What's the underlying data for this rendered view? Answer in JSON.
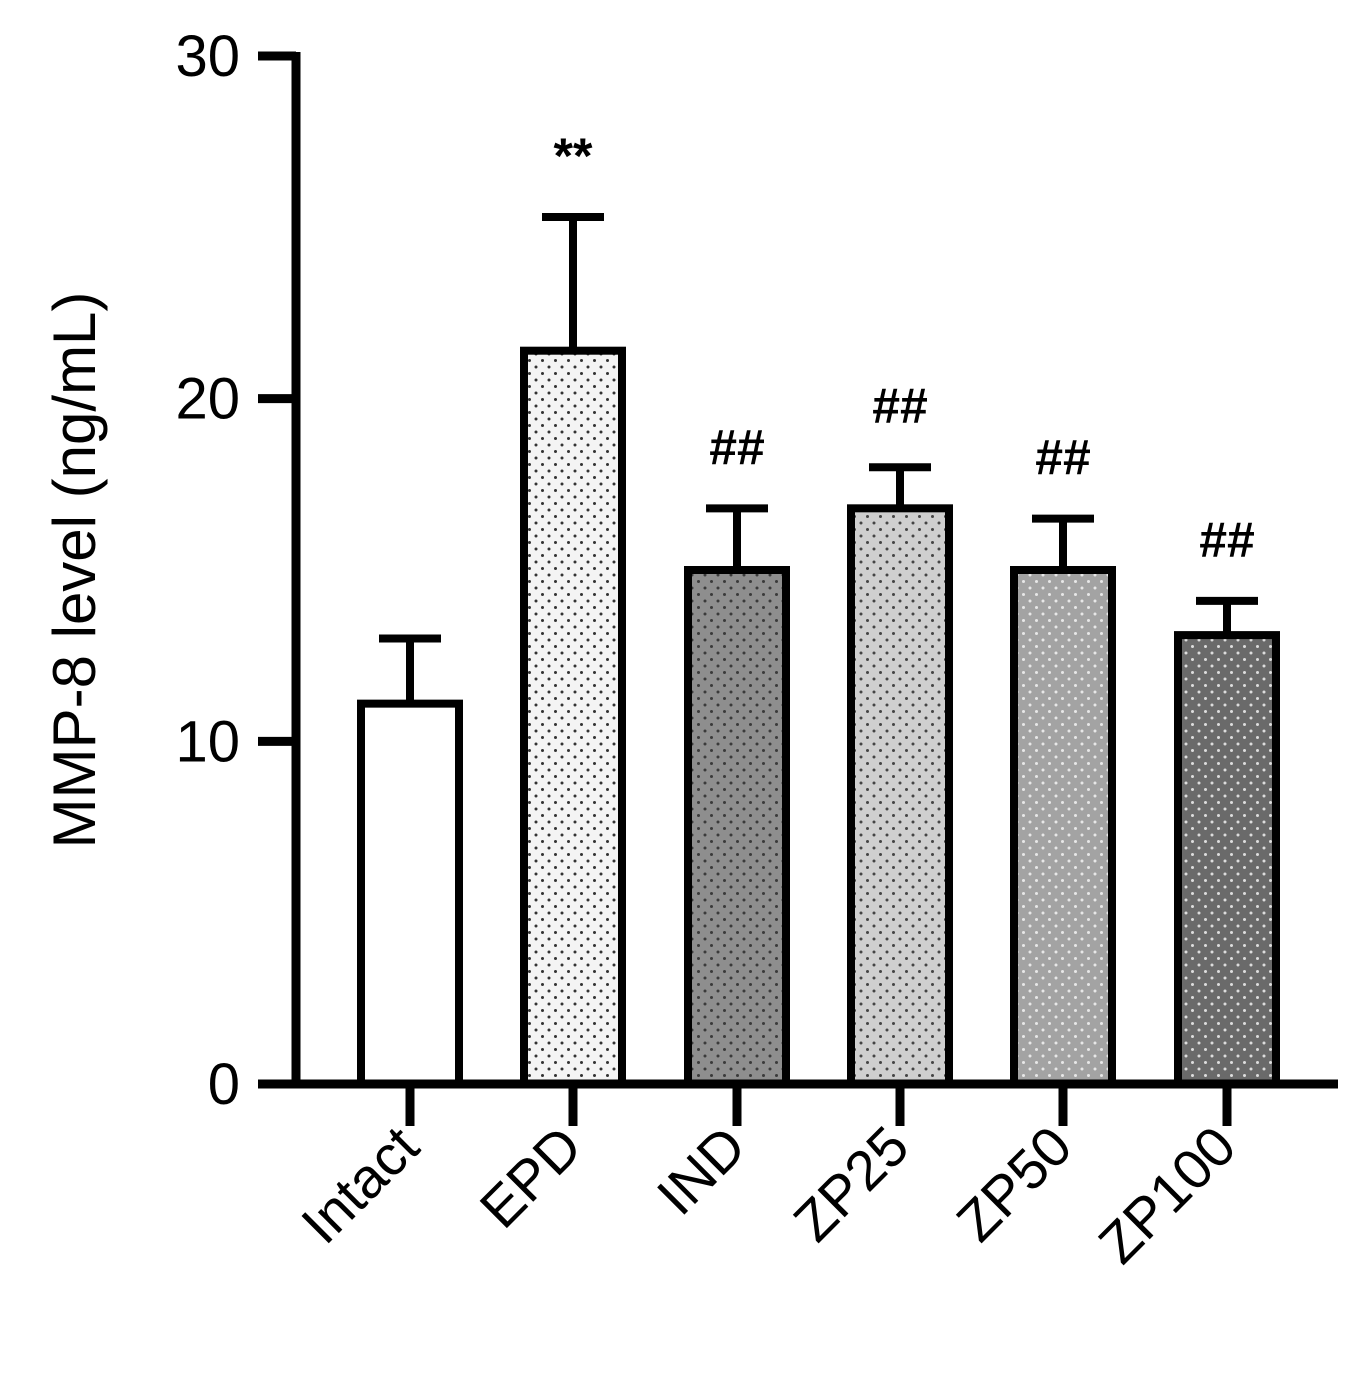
{
  "chart_data": {
    "type": "bar",
    "title": "",
    "xlabel": "",
    "ylabel": "MMP-8 level (ng/mL)",
    "ylim": [
      0,
      30
    ],
    "yticks": [
      0,
      10,
      20,
      30
    ],
    "grid": false,
    "categories": [
      "Intact",
      "EPD",
      "IND",
      "ZP25",
      "ZP50",
      "ZP100"
    ],
    "values": [
      11.1,
      21.4,
      15.0,
      16.8,
      15.0,
      13.1
    ],
    "errors": [
      1.9,
      3.9,
      1.8,
      1.2,
      1.5,
      1.0
    ],
    "annotations": [
      "",
      "**",
      "##",
      "##",
      "##",
      "##"
    ],
    "fills": [
      "#ffffff",
      "#f4f4f4",
      "#8e8e8e",
      "#cfcfcf",
      "#a3a3a3",
      "#6a6a6a"
    ],
    "dot_colors": [
      "",
      "#333333",
      "#3a3a3a",
      "#444444",
      "#e8e8e8",
      "#dddddd"
    ]
  }
}
